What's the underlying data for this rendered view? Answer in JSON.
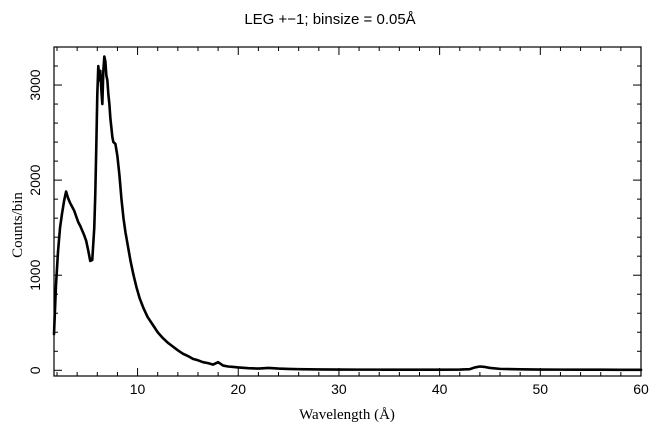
{
  "chart_data": {
    "type": "line",
    "title": "LEG +−1; binsize = 0.05Å",
    "xlabel": "Wavelength (Å)",
    "ylabel": "Counts/bin",
    "xlim": [
      1.7,
      60
    ],
    "ylim": [
      -60,
      3400
    ],
    "x_ticks": [
      10,
      20,
      30,
      40,
      50,
      60
    ],
    "x_tick_labels": [
      "10",
      "20",
      "30",
      "40",
      "50",
      "60"
    ],
    "y_ticks": [
      0,
      1000,
      2000,
      3000
    ],
    "y_tick_labels": [
      "0",
      "1000",
      "2000",
      "3000"
    ],
    "grid": false,
    "legend": "none",
    "series": [
      {
        "color": "#000000",
        "x": [
          1.7,
          1.9,
          2.1,
          2.3,
          2.5,
          2.7,
          2.9,
          3.1,
          3.3,
          3.5,
          3.7,
          3.9,
          4.1,
          4.3,
          4.5,
          4.7,
          4.9,
          5.1,
          5.3,
          5.5,
          5.7,
          5.8,
          5.9,
          6.0,
          6.1,
          6.2,
          6.3,
          6.4,
          6.5,
          6.6,
          6.7,
          6.8,
          6.9,
          7.0,
          7.1,
          7.2,
          7.3,
          7.4,
          7.5,
          7.6,
          7.8,
          8.0,
          8.2,
          8.4,
          8.6,
          8.8,
          9.0,
          9.3,
          9.6,
          9.9,
          10.2,
          10.6,
          11.0,
          11.5,
          12.0,
          12.5,
          13.0,
          13.5,
          14.0,
          14.5,
          15.0,
          15.5,
          16.0,
          16.5,
          17.0,
          17.5,
          18.0,
          18.5,
          19.0,
          19.5,
          20.0,
          21.0,
          22.0,
          23.0,
          24.0,
          25.0,
          26.0,
          27.0,
          28.0,
          30.0,
          32.0,
          34.0,
          36.0,
          38.0,
          40.0,
          42.0,
          43.0,
          43.5,
          44.0,
          44.5,
          45.0,
          46.0,
          48.0,
          50.0,
          52.0,
          54.0,
          56.0,
          58.0,
          60.0
        ],
        "values": [
          380,
          900,
          1250,
          1500,
          1650,
          1780,
          1880,
          1810,
          1760,
          1720,
          1680,
          1620,
          1560,
          1520,
          1470,
          1420,
          1360,
          1260,
          1150,
          1160,
          1500,
          1850,
          2350,
          2900,
          3200,
          3050,
          3150,
          2950,
          2800,
          3150,
          3300,
          3250,
          3100,
          3050,
          2900,
          2800,
          2650,
          2550,
          2450,
          2400,
          2380,
          2250,
          2050,
          1800,
          1600,
          1450,
          1330,
          1150,
          1000,
          870,
          760,
          650,
          560,
          480,
          400,
          340,
          290,
          250,
          210,
          175,
          150,
          120,
          105,
          85,
          75,
          60,
          85,
          50,
          40,
          35,
          30,
          22,
          18,
          25,
          18,
          14,
          12,
          10,
          9,
          8,
          7,
          7,
          6,
          6,
          6,
          8,
          12,
          30,
          40,
          35,
          25,
          15,
          10,
          8,
          7,
          6,
          6,
          5,
          5
        ]
      }
    ]
  }
}
